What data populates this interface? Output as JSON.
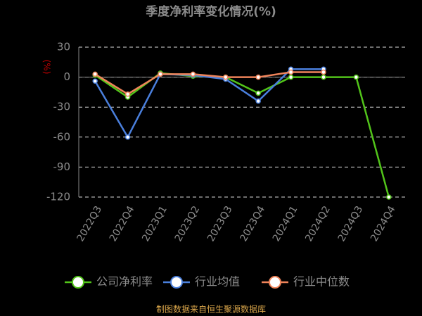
{
  "chart_data": {
    "type": "line",
    "title": "季度净利率变化情况(%)",
    "y_label": "(%)",
    "categories": [
      "2022Q3",
      "2022Q4",
      "2023Q1",
      "2023Q2",
      "2023Q3",
      "2023Q4",
      "2024Q1",
      "2024Q2",
      "2024Q3",
      "2024Q4"
    ],
    "series": [
      {
        "name": "公司净利率",
        "color": "#52c41a",
        "values": [
          2,
          -20,
          4,
          1,
          0,
          -16,
          0,
          0,
          0,
          -120
        ]
      },
      {
        "name": "行业均值",
        "color": "#4a7fdc",
        "values": [
          -4,
          -60,
          3,
          2,
          -2,
          -24,
          8,
          8,
          null,
          null
        ]
      },
      {
        "name": "行业中位数",
        "color": "#f0845a",
        "values": [
          3,
          -17,
          3,
          3,
          0,
          0,
          5,
          5,
          null,
          null
        ]
      }
    ],
    "ylim": [
      -120,
      30
    ],
    "yticks": [
      30,
      0,
      -30,
      -60,
      -90,
      -120
    ],
    "grid": true,
    "source": "制图数据来自恒生聚源数据库"
  }
}
